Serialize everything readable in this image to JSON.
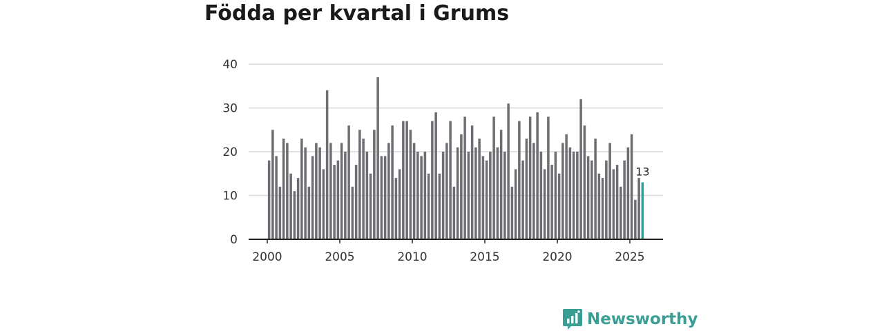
{
  "title": "Födda per kvartal i Grums",
  "brand": {
    "name": "Newsworthy",
    "color": "#3a9e94"
  },
  "chart_data": {
    "type": "bar",
    "title": "Födda per kvartal i Grums",
    "xlabel": "",
    "ylabel": "",
    "ylim": [
      0,
      40
    ],
    "yticks": [
      0,
      10,
      20,
      30,
      40
    ],
    "xticks": [
      "2000",
      "2005",
      "2010",
      "2015",
      "2020",
      "2025"
    ],
    "grid": true,
    "bar_color": "#6e6d72",
    "highlight_color": "#2aa198",
    "start_year": 2000,
    "values": [
      18,
      25,
      19,
      12,
      23,
      22,
      15,
      11,
      14,
      23,
      21,
      12,
      19,
      22,
      21,
      16,
      34,
      22,
      17,
      18,
      22,
      20,
      26,
      12,
      17,
      25,
      23,
      20,
      15,
      25,
      37,
      19,
      19,
      22,
      26,
      14,
      16,
      27,
      27,
      25,
      22,
      20,
      19,
      20,
      15,
      27,
      29,
      15,
      20,
      22,
      27,
      12,
      21,
      24,
      28,
      20,
      26,
      21,
      23,
      19,
      18,
      20,
      28,
      21,
      25,
      20,
      31,
      12,
      16,
      27,
      18,
      23,
      28,
      22,
      29,
      20,
      16,
      28,
      17,
      20,
      15,
      22,
      24,
      21,
      20,
      20,
      32,
      26,
      19,
      18,
      23,
      15,
      14,
      18,
      22,
      16,
      17,
      12,
      18,
      21,
      24,
      9,
      14,
      13
    ],
    "highlight_last": true,
    "last_value_label": "13"
  }
}
